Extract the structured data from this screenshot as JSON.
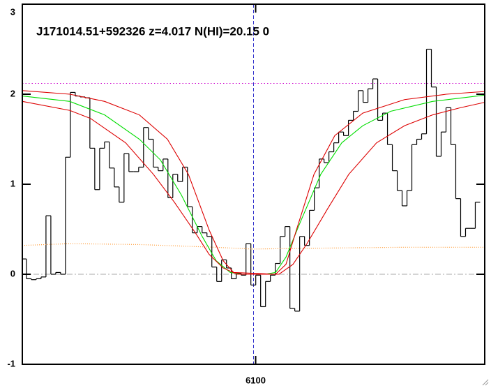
{
  "chart_data": {
    "type": "spectrum",
    "title": "J171014.51+592326 z=4.017 N(HI)=20.15 0",
    "xlim": [
      5990,
      6208
    ],
    "ylim": [
      -1,
      3
    ],
    "xticks": [
      6100
    ],
    "yticks": [
      -1,
      0,
      1,
      2,
      3
    ],
    "hlines": [
      {
        "value": 2.12,
        "color": "#cc00cc",
        "dash": "dotted"
      },
      {
        "value": 0,
        "color": "#aaaaaa",
        "dash": "dashdot"
      }
    ],
    "vlines": [
      {
        "value": 6099,
        "color": "#3333cc",
        "dash": "dashed"
      }
    ],
    "series": [
      {
        "style": "step",
        "color": "#000000",
        "x": [
          5990.8,
          5993.1,
          5995.4,
          5997.7,
          6000.0,
          6002.3,
          6004.6,
          6006.9,
          6009.2,
          6011.5,
          6013.8,
          6016.1,
          6018.4,
          6020.7,
          6023.0,
          6025.3,
          6027.6,
          6029.9,
          6032.2,
          6034.5,
          6036.8,
          6039.1,
          6041.4,
          6043.7,
          6046.0,
          6048.3,
          6050.6,
          6052.9,
          6055.2,
          6057.5,
          6059.8,
          6062.1,
          6064.4,
          6066.7,
          6069.0,
          6071.3,
          6073.6,
          6075.9,
          6078.2,
          6080.5,
          6082.8,
          6085.1,
          6087.4,
          6089.7,
          6092.0,
          6094.3,
          6096.6,
          6098.9,
          6101.2,
          6103.5,
          6105.8,
          6108.1,
          6110.4,
          6112.7,
          6115.0,
          6117.3,
          6119.6,
          6121.9,
          6124.2,
          6126.5,
          6128.8,
          6131.1,
          6133.4,
          6135.7,
          6138.0,
          6140.3,
          6142.6,
          6144.9,
          6147.2,
          6149.5,
          6151.8,
          6154.1,
          6156.4,
          6158.7,
          6161.0,
          6163.3,
          6165.6,
          6167.9,
          6170.2,
          6172.5,
          6174.8,
          6177.1,
          6179.4,
          6181.7,
          6184.0,
          6186.3,
          6188.6,
          6190.9,
          6193.2,
          6195.5,
          6197.8,
          6200.1,
          6202.4,
          6204.7
        ],
        "values": [
          0.17,
          -0.05,
          -0.06,
          -0.05,
          -0.03,
          0.65,
          0.0,
          0.02,
          0.0,
          1.3,
          2.02,
          1.98,
          1.97,
          1.96,
          1.4,
          0.94,
          1.4,
          1.47,
          1.18,
          0.97,
          0.8,
          1.34,
          1.14,
          1.14,
          1.19,
          1.63,
          1.5,
          1.19,
          1.15,
          1.28,
          0.85,
          1.11,
          1.03,
          1.19,
          0.75,
          0.46,
          0.53,
          0.46,
          0.42,
          0.08,
          -0.08,
          0.16,
          0.07,
          -0.05,
          0.01,
          -0.01,
          0.34,
          -0.12,
          -0.01,
          -0.36,
          -0.08,
          -0.01,
          0.12,
          0.42,
          0.53,
          -0.38,
          -0.41,
          0.42,
          0.32,
          0.71,
          0.96,
          1.28,
          1.24,
          1.36,
          1.46,
          1.58,
          1.54,
          1.71,
          1.81,
          2.04,
          1.91,
          2.06,
          2.17,
          1.71,
          1.79,
          1.44,
          1.15,
          0.93,
          0.76,
          0.93,
          1.44,
          1.5,
          1.56,
          2.5,
          2.08,
          1.31,
          1.58,
          1.85,
          1.44,
          0.84,
          0.42,
          0.51,
          0.51,
          0.8
        ]
      },
      {
        "style": "dotted",
        "color": "#ff9933",
        "x": [
          5990,
          6012.4,
          6045.2,
          6080.5,
          6098.5,
          6130.7,
          6170.2,
          6208
        ],
        "values": [
          0.32,
          0.34,
          0.33,
          0.3,
          0.28,
          0.29,
          0.3,
          0.3
        ]
      },
      {
        "style": "line",
        "color": "#00dd00",
        "x": [
          5990,
          6012.4,
          6028.8,
          6045.2,
          6055.1,
          6065.0,
          6074.8,
          6081.4,
          6088.0,
          6092.9,
          6098.5,
          6104.4,
          6109.4,
          6114.3,
          6120.9,
          6130.7,
          6140.6,
          6150.5,
          6163.6,
          6183.4,
          6208
        ],
        "values": [
          1.98,
          1.92,
          1.77,
          1.5,
          1.27,
          0.88,
          0.42,
          0.15,
          0.02,
          0,
          0,
          0,
          0.02,
          0.19,
          0.57,
          1.11,
          1.46,
          1.65,
          1.81,
          1.92,
          1.99
        ]
      },
      {
        "style": "line",
        "color": "#dd0000",
        "x": [
          5990,
          6012.4,
          6028.8,
          6045.2,
          6058.4,
          6068.3,
          6078.1,
          6084.7,
          6089.6,
          6109.4,
          6114.3,
          6119.2,
          6127.5,
          6137.3,
          6150.5,
          6170.2,
          6189.9,
          6208
        ],
        "values": [
          2.04,
          2.0,
          1.92,
          1.77,
          1.5,
          1.11,
          0.49,
          0.15,
          0.02,
          0,
          0.11,
          0.49,
          1.11,
          1.54,
          1.79,
          1.94,
          2.0,
          2.03
        ]
      },
      {
        "style": "line",
        "color": "#dd0000",
        "x": [
          5990,
          6012.4,
          6022.2,
          6038.7,
          6051.8,
          6061.7,
          6071.6,
          6078.1,
          6084.7,
          6091.3,
          6111.0,
          6117.6,
          6124.2,
          6134.0,
          6143.9,
          6157.0,
          6170.2,
          6183.4,
          6196.5,
          6208
        ],
        "values": [
          1.92,
          1.82,
          1.73,
          1.46,
          1.11,
          0.8,
          0.46,
          0.22,
          0.07,
          0,
          0,
          0.11,
          0.34,
          0.73,
          1.11,
          1.46,
          1.65,
          1.77,
          1.85,
          1.91
        ]
      }
    ]
  }
}
